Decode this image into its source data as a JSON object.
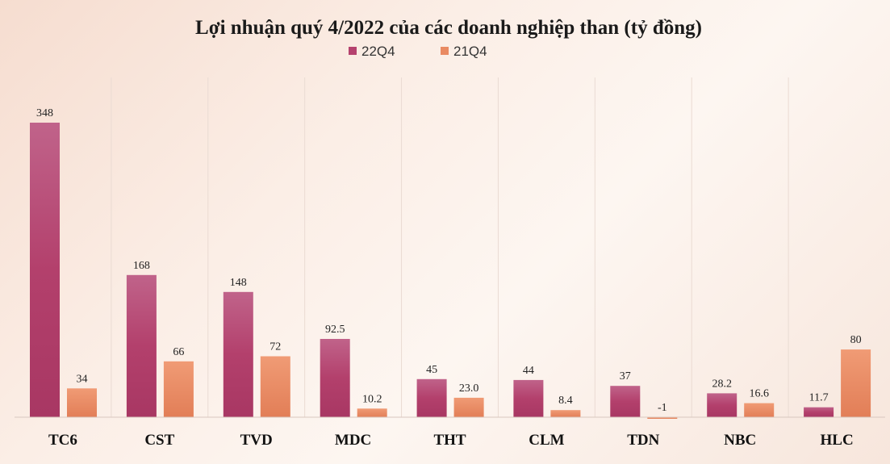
{
  "chart_data": {
    "type": "bar",
    "title": "Lợi nhuận quý 4/2022 của các doanh nghiệp than (tỷ đồng)",
    "categories": [
      "TC6",
      "CST",
      "TVD",
      "MDC",
      "THT",
      "CLM",
      "TDN",
      "NBC",
      "HLC"
    ],
    "series": [
      {
        "name": "22Q4",
        "color": "#b5426e",
        "values": [
          348,
          168,
          148,
          92.5,
          45,
          44,
          37,
          28.2,
          11.7
        ],
        "labels": [
          "348",
          "168",
          "148",
          "92.5",
          "45",
          "44",
          "37",
          "28.2",
          "11.7"
        ]
      },
      {
        "name": "21Q4",
        "color": "#e98a62",
        "values": [
          34,
          66,
          72,
          10.2,
          23.0,
          8.4,
          -1,
          16.6,
          80
        ],
        "labels": [
          "34",
          "66",
          "72",
          "10.2",
          "23.0",
          "8.4",
          "-1",
          "16.6",
          "80"
        ]
      }
    ],
    "legend_position": "top-center",
    "grid": false,
    "ylim": [
      -2,
      365
    ]
  }
}
